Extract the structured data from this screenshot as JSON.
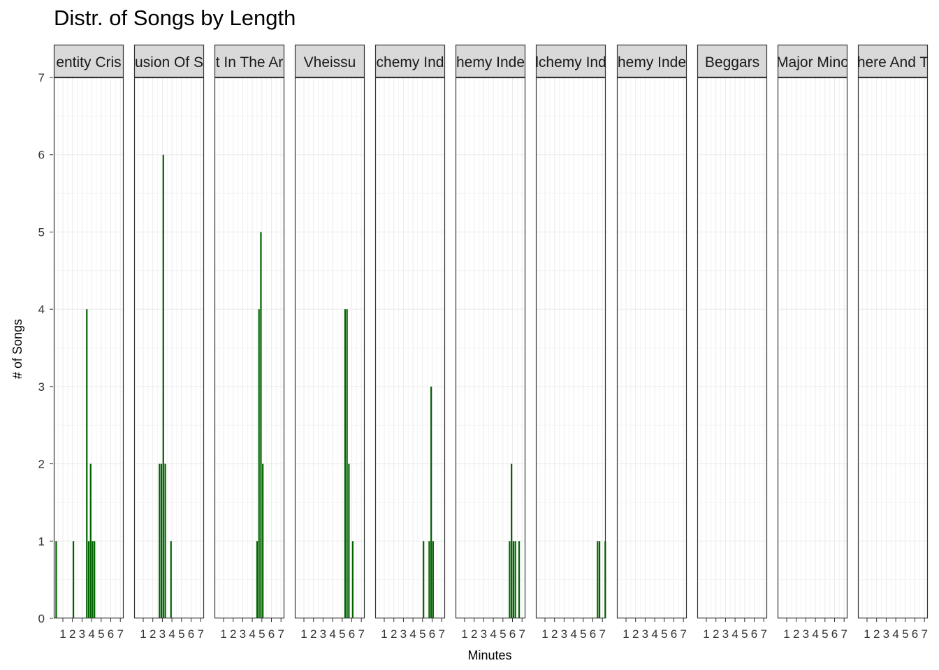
{
  "chart_data": {
    "type": "bar",
    "title": "Distr. of Songs by Length",
    "xlabel": "Minutes",
    "ylabel": "# of Songs",
    "facet_labels_visible": [
      "entity Cris",
      "usion Of S",
      "t In The Ar",
      "Vheissu",
      "chemy Ind",
      "hemy Inde",
      "lchemy Ind",
      "hemy Inde",
      "Beggars",
      "Major Mino",
      "here And T"
    ],
    "x_ticks": [
      1,
      2,
      3,
      4,
      5,
      6,
      7
    ],
    "y_ticks": [
      0,
      1,
      2,
      3,
      4,
      5,
      6,
      7
    ],
    "xlim": [
      0.1,
      7.3
    ],
    "ylim": [
      0,
      7
    ],
    "bar_color": "#006400",
    "grid": true,
    "panels": [
      {
        "label": "entity Cris",
        "x": [
          0.1,
          0.3,
          0.5,
          0.7,
          0.9,
          1.1,
          1.3,
          1.5,
          1.7,
          1.9,
          2.1,
          2.3,
          2.5,
          2.7,
          2.9,
          3.1,
          3.3,
          3.5,
          3.7,
          3.9,
          4.1,
          4.3,
          4.5,
          4.7,
          4.9,
          5.1,
          5.3,
          5.5,
          5.7,
          5.9,
          6.1,
          6.3,
          6.5,
          6.7,
          6.9,
          7.1,
          7.3
        ],
        "values": [
          0,
          1,
          0,
          0,
          0,
          0,
          0,
          0,
          0,
          0,
          1,
          0,
          0,
          0,
          0,
          0,
          0,
          4,
          1,
          2,
          1,
          1,
          0,
          0,
          0,
          0,
          0,
          0,
          0,
          0,
          0,
          0,
          0,
          0,
          0,
          0,
          0
        ]
      },
      {
        "label": "usion Of S",
        "x": [
          0.1,
          0.3,
          0.5,
          0.7,
          0.9,
          1.1,
          1.3,
          1.5,
          1.7,
          1.9,
          2.1,
          2.3,
          2.5,
          2.7,
          2.9,
          3.1,
          3.3,
          3.5,
          3.7,
          3.9,
          4.1,
          4.3,
          4.5,
          4.7,
          4.9,
          5.1,
          5.3,
          5.5,
          5.7,
          5.9,
          6.1,
          6.3,
          6.5,
          6.7,
          6.9,
          7.1,
          7.3
        ],
        "values": [
          0,
          0,
          0,
          0,
          0,
          0,
          0,
          0,
          0,
          0,
          0,
          0,
          0,
          2,
          2,
          6,
          2,
          0,
          0,
          1,
          0,
          0,
          0,
          0,
          0,
          0,
          0,
          0,
          0,
          0,
          0,
          0,
          0,
          0,
          0,
          0,
          0
        ]
      },
      {
        "label": "t In The Ar",
        "x": [
          0.1,
          0.3,
          0.5,
          0.7,
          0.9,
          1.1,
          1.3,
          1.5,
          1.7,
          1.9,
          2.1,
          2.3,
          2.5,
          2.7,
          2.9,
          3.1,
          3.3,
          3.5,
          3.7,
          3.9,
          4.1,
          4.3,
          4.5,
          4.7,
          4.9,
          5.1,
          5.3,
          5.5,
          5.7,
          5.9,
          6.1,
          6.3,
          6.5,
          6.7,
          6.9,
          7.1,
          7.3
        ],
        "values": [
          0,
          0,
          0,
          0,
          0,
          0,
          0,
          0,
          0,
          0,
          0,
          0,
          0,
          0,
          0,
          0,
          0,
          0,
          0,
          0,
          0,
          0,
          1,
          4,
          5,
          2,
          0,
          0,
          0,
          0,
          0,
          0,
          0,
          0,
          0,
          0,
          0
        ]
      },
      {
        "label": "Vheissu",
        "x": [
          0.1,
          0.3,
          0.5,
          0.7,
          0.9,
          1.1,
          1.3,
          1.5,
          1.7,
          1.9,
          2.1,
          2.3,
          2.5,
          2.7,
          2.9,
          3.1,
          3.3,
          3.5,
          3.7,
          3.9,
          4.1,
          4.3,
          4.5,
          4.7,
          4.9,
          5.1,
          5.3,
          5.5,
          5.7,
          5.9,
          6.1,
          6.3,
          6.5,
          6.7,
          6.9,
          7.1,
          7.3
        ],
        "values": [
          0,
          0,
          0,
          0,
          0,
          0,
          0,
          0,
          0,
          0,
          0,
          0,
          0,
          0,
          0,
          0,
          0,
          0,
          0,
          0,
          0,
          0,
          0,
          0,
          0,
          0,
          4,
          4,
          2,
          0,
          1,
          0,
          0,
          0,
          0,
          0,
          0
        ]
      },
      {
        "label": "chemy Ind",
        "x": [
          0.1,
          0.3,
          0.5,
          0.7,
          0.9,
          1.1,
          1.3,
          1.5,
          1.7,
          1.9,
          2.1,
          2.3,
          2.5,
          2.7,
          2.9,
          3.1,
          3.3,
          3.5,
          3.7,
          3.9,
          4.1,
          4.3,
          4.5,
          4.7,
          4.9,
          5.1,
          5.3,
          5.5,
          5.7,
          5.9,
          6.1,
          6.3,
          6.5,
          6.7,
          6.9,
          7.1,
          7.3
        ],
        "values": [
          0,
          0,
          0,
          0,
          0,
          0,
          0,
          0,
          0,
          0,
          0,
          0,
          0,
          0,
          0,
          0,
          0,
          0,
          0,
          0,
          0,
          0,
          0,
          0,
          0,
          1,
          0,
          0,
          1,
          3,
          1,
          0,
          0,
          0,
          0,
          0,
          0
        ]
      },
      {
        "label": "hemy Inde",
        "x": [
          0.1,
          0.3,
          0.5,
          0.7,
          0.9,
          1.1,
          1.3,
          1.5,
          1.7,
          1.9,
          2.1,
          2.3,
          2.5,
          2.7,
          2.9,
          3.1,
          3.3,
          3.5,
          3.7,
          3.9,
          4.1,
          4.3,
          4.5,
          4.7,
          4.9,
          5.1,
          5.3,
          5.5,
          5.7,
          5.9,
          6.1,
          6.3,
          6.5,
          6.7,
          6.9,
          7.1,
          7.3
        ],
        "values": [
          0,
          0,
          0,
          0,
          0,
          0,
          0,
          0,
          0,
          0,
          0,
          0,
          0,
          0,
          0,
          0,
          0,
          0,
          0,
          0,
          0,
          0,
          0,
          0,
          0,
          0,
          0,
          0,
          1,
          2,
          1,
          1,
          0,
          1,
          0,
          0,
          0
        ]
      },
      {
        "label": "lchemy Ind",
        "x": [
          0.1,
          0.3,
          0.5,
          0.7,
          0.9,
          1.1,
          1.3,
          1.5,
          1.7,
          1.9,
          2.1,
          2.3,
          2.5,
          2.7,
          2.9,
          3.1,
          3.3,
          3.5,
          3.7,
          3.9,
          4.1,
          4.3,
          4.5,
          4.7,
          4.9,
          5.1,
          5.3,
          5.5,
          5.7,
          5.9,
          6.1,
          6.3,
          6.5,
          6.7,
          6.9,
          7.1,
          7.3
        ],
        "values": [
          0,
          0,
          0,
          0,
          0,
          0,
          0,
          0,
          0,
          0,
          0,
          0,
          0,
          0,
          0,
          0,
          0,
          0,
          0,
          0,
          0,
          0,
          0,
          0,
          0,
          0,
          0,
          0,
          0,
          0,
          0,
          0,
          1,
          1,
          0,
          0,
          1
        ]
      },
      {
        "label": "hemy Inde",
        "x": [
          0.1,
          0.3,
          0.5,
          0.7,
          0.9,
          1.1,
          1.3,
          1.5,
          1.7,
          1.9,
          2.1,
          2.3,
          2.5,
          2.7,
          2.9,
          3.1,
          3.3,
          3.5,
          3.7,
          3.9,
          4.1,
          4.3,
          4.5,
          4.7,
          4.9,
          5.1,
          5.3,
          5.5,
          5.7,
          5.9,
          6.1,
          6.3,
          6.5,
          6.7,
          6.9,
          7.1,
          7.3
        ],
        "values": [
          0,
          0,
          0,
          0,
          0,
          0,
          0,
          0,
          0,
          0,
          0,
          0,
          0,
          0,
          0,
          0,
          0,
          0,
          0,
          0,
          0,
          0,
          0,
          0,
          0,
          0,
          0,
          0,
          0,
          0,
          0,
          0,
          0,
          0,
          0,
          0,
          0
        ]
      },
      {
        "label": "Beggars",
        "x": [
          0.1,
          0.3,
          0.5,
          0.7,
          0.9,
          1.1,
          1.3,
          1.5,
          1.7,
          1.9,
          2.1,
          2.3,
          2.5,
          2.7,
          2.9,
          3.1,
          3.3,
          3.5,
          3.7,
          3.9,
          4.1,
          4.3,
          4.5,
          4.7,
          4.9,
          5.1,
          5.3,
          5.5,
          5.7,
          5.9,
          6.1,
          6.3,
          6.5,
          6.7,
          6.9,
          7.1,
          7.3
        ],
        "values": [
          0,
          0,
          0,
          0,
          0,
          0,
          0,
          0,
          0,
          0,
          0,
          0,
          0,
          0,
          0,
          0,
          0,
          0,
          0,
          0,
          0,
          0,
          0,
          0,
          0,
          0,
          0,
          0,
          0,
          0,
          0,
          0,
          0,
          0,
          0,
          0,
          0
        ]
      },
      {
        "label": "Major Mino",
        "x": [
          0.1,
          0.3,
          0.5,
          0.7,
          0.9,
          1.1,
          1.3,
          1.5,
          1.7,
          1.9,
          2.1,
          2.3,
          2.5,
          2.7,
          2.9,
          3.1,
          3.3,
          3.5,
          3.7,
          3.9,
          4.1,
          4.3,
          4.5,
          4.7,
          4.9,
          5.1,
          5.3,
          5.5,
          5.7,
          5.9,
          6.1,
          6.3,
          6.5,
          6.7,
          6.9,
          7.1,
          7.3
        ],
        "values": [
          0,
          0,
          0,
          0,
          0,
          0,
          0,
          0,
          0,
          0,
          0,
          0,
          0,
          0,
          0,
          0,
          0,
          0,
          0,
          0,
          0,
          0,
          0,
          0,
          0,
          0,
          0,
          0,
          0,
          0,
          0,
          0,
          0,
          0,
          0,
          0,
          0
        ]
      },
      {
        "label": "here And T",
        "x": [
          0.1,
          0.3,
          0.5,
          0.7,
          0.9,
          1.1,
          1.3,
          1.5,
          1.7,
          1.9,
          2.1,
          2.3,
          2.5,
          2.7,
          2.9,
          3.1,
          3.3,
          3.5,
          3.7,
          3.9,
          4.1,
          4.3,
          4.5,
          4.7,
          4.9,
          5.1,
          5.3,
          5.5,
          5.7,
          5.9,
          6.1,
          6.3,
          6.5,
          6.7,
          6.9,
          7.1,
          7.3
        ],
        "values": [
          0,
          0,
          0,
          0,
          0,
          0,
          0,
          0,
          0,
          0,
          0,
          0,
          0,
          0,
          0,
          0,
          0,
          0,
          0,
          0,
          0,
          0,
          0,
          0,
          0,
          0,
          0,
          0,
          0,
          0,
          0,
          0,
          0,
          0,
          0,
          0,
          0
        ]
      }
    ]
  }
}
